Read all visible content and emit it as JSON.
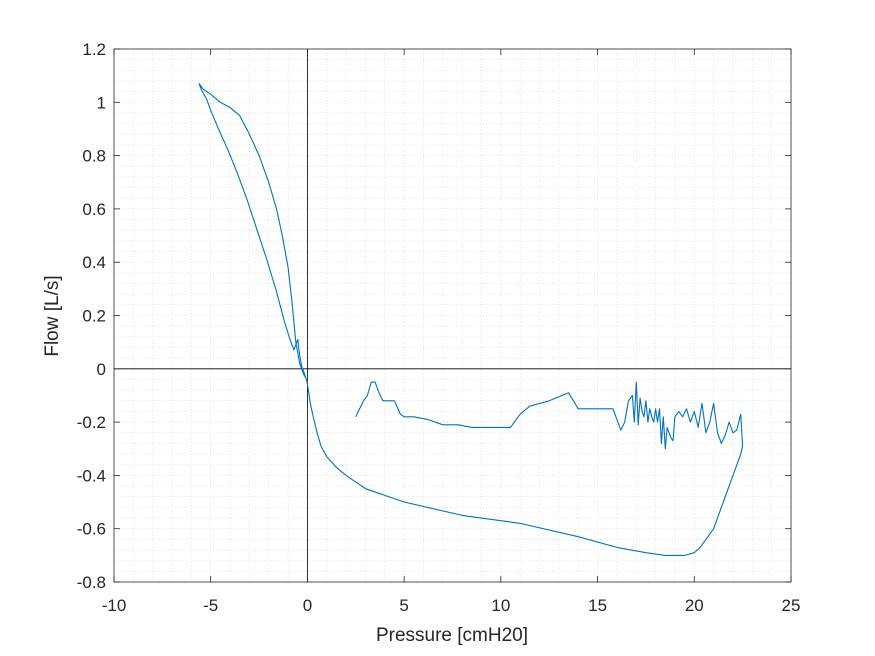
{
  "chart_data": {
    "type": "line",
    "title": "",
    "xlabel": "Pressure [cmH20]",
    "ylabel": "Flow [L/s]",
    "xlim": [
      -10,
      25
    ],
    "ylim": [
      -0.8,
      1.2
    ],
    "xticks": [
      -10,
      -5,
      0,
      5,
      10,
      15,
      20,
      25
    ],
    "yticks": [
      -0.8,
      -0.6,
      -0.4,
      -0.2,
      0,
      0.2,
      0.4,
      0.6,
      0.8,
      1,
      1.2
    ],
    "xtick_labels": [
      "-10",
      "-5",
      "0",
      "5",
      "10",
      "15",
      "20",
      "25"
    ],
    "ytick_labels": [
      "-0.8",
      "-0.6",
      "-0.4",
      "-0.2",
      "0",
      "0.2",
      "0.4",
      "0.6",
      "0.8",
      "1",
      "1.2"
    ],
    "grid": "minor dotted",
    "reference_lines": {
      "x": 0,
      "y": 0
    },
    "series_color": "#0072BD",
    "series": [
      {
        "name": "",
        "x": [
          2.5,
          2.9,
          3.1,
          3.3,
          3.5,
          3.7,
          3.9,
          4.1,
          4.5,
          4.8,
          5.0,
          5.5,
          6.2,
          7.0,
          7.8,
          8.5,
          9.5,
          10.5,
          11.0,
          11.5,
          12.5,
          13.5,
          14.0,
          15.0,
          15.8,
          16.2,
          16.4,
          16.6,
          16.8,
          16.9,
          17.0,
          17.1,
          17.2,
          17.3,
          17.4,
          17.5,
          17.6,
          17.7,
          17.8,
          17.9,
          18.0,
          18.1,
          18.2,
          18.3,
          18.4,
          18.5,
          18.6,
          18.7,
          18.8,
          18.9,
          19.0,
          19.2,
          19.4,
          19.6,
          19.8,
          20.0,
          20.2,
          20.4,
          20.6,
          20.8,
          21.0,
          21.2,
          21.4,
          21.6,
          21.8,
          22.0,
          22.2,
          22.4,
          22.5,
          22.4,
          22.0,
          21.5,
          21.0,
          20.6,
          20.3,
          20.0,
          19.5,
          19.0,
          18.5,
          17.5,
          16.0,
          14.0,
          11.0,
          8.0,
          5.0,
          3.0,
          2.0,
          1.5,
          1.0,
          0.7,
          0.5,
          0.3,
          0.15,
          0.05,
          -0.05,
          -0.2,
          -0.4,
          -0.6,
          -0.8,
          -1.0,
          -1.3,
          -1.6,
          -2.0,
          -2.5,
          -3.0,
          -3.5,
          -4.0,
          -4.5,
          -5.0,
          -5.4,
          -5.6,
          -5.5,
          -5.2,
          -5.0,
          -4.6,
          -4.1,
          -3.6,
          -3.1,
          -2.6,
          -2.1,
          -1.6,
          -1.2,
          -0.9,
          -0.7,
          -0.6,
          -0.5,
          -0.45,
          -0.4,
          -0.35,
          -0.3,
          -0.2,
          -0.1
        ],
        "y": [
          -0.18,
          -0.12,
          -0.1,
          -0.05,
          -0.05,
          -0.09,
          -0.12,
          -0.12,
          -0.12,
          -0.17,
          -0.18,
          -0.18,
          -0.19,
          -0.21,
          -0.21,
          -0.22,
          -0.22,
          -0.22,
          -0.17,
          -0.14,
          -0.12,
          -0.09,
          -0.15,
          -0.15,
          -0.15,
          -0.23,
          -0.2,
          -0.12,
          -0.1,
          -0.2,
          -0.05,
          -0.21,
          -0.11,
          -0.16,
          -0.18,
          -0.12,
          -0.2,
          -0.15,
          -0.18,
          -0.2,
          -0.15,
          -0.2,
          -0.15,
          -0.28,
          -0.18,
          -0.3,
          -0.22,
          -0.24,
          -0.26,
          -0.27,
          -0.18,
          -0.16,
          -0.18,
          -0.15,
          -0.2,
          -0.16,
          -0.22,
          -0.13,
          -0.24,
          -0.2,
          -0.13,
          -0.24,
          -0.28,
          -0.25,
          -0.2,
          -0.24,
          -0.23,
          -0.17,
          -0.29,
          -0.32,
          -0.4,
          -0.5,
          -0.6,
          -0.64,
          -0.67,
          -0.69,
          -0.7,
          -0.7,
          -0.7,
          -0.69,
          -0.67,
          -0.63,
          -0.58,
          -0.55,
          -0.5,
          -0.45,
          -0.4,
          -0.37,
          -0.33,
          -0.29,
          -0.24,
          -0.18,
          -0.13,
          -0.08,
          -0.04,
          -0.02,
          0.02,
          0.1,
          0.25,
          0.38,
          0.5,
          0.6,
          0.7,
          0.8,
          0.88,
          0.95,
          0.98,
          1.0,
          1.03,
          1.05,
          1.07,
          1.05,
          1.01,
          0.97,
          0.9,
          0.82,
          0.73,
          0.63,
          0.52,
          0.41,
          0.29,
          0.18,
          0.11,
          0.07,
          0.09,
          0.11,
          0.08,
          0.05,
          0.03,
          0.01,
          -0.01,
          -0.03
        ]
      }
    ]
  }
}
